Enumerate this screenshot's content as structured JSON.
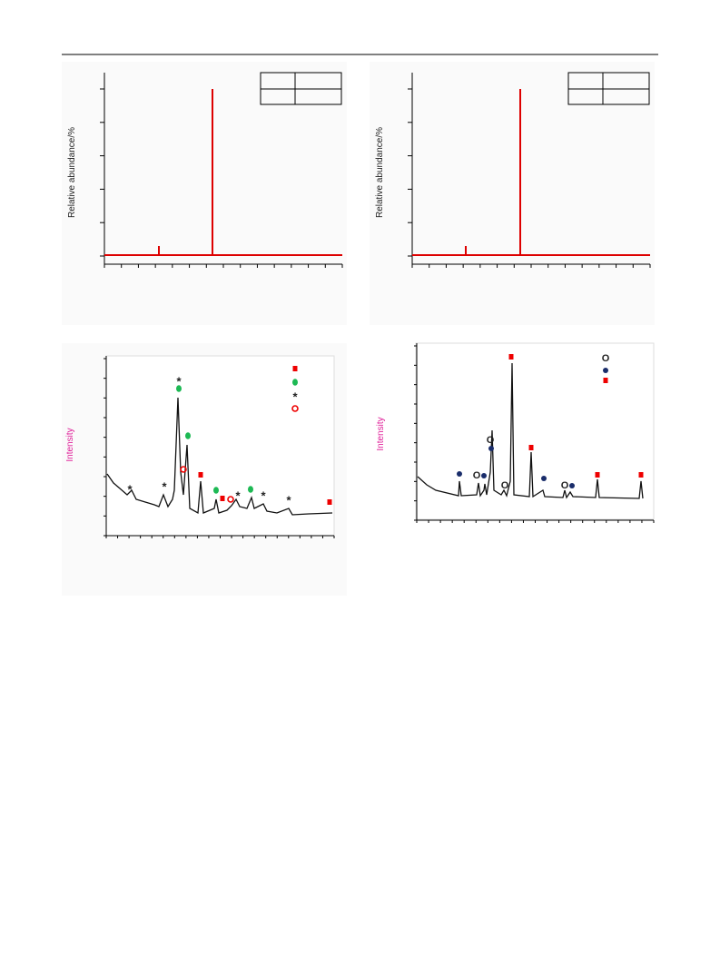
{
  "figures": [
    {
      "y_label": "Relative abundance/%"
    },
    {
      "y_label": "Relative abundance/%"
    },
    {
      "y_label": "Intensity"
    },
    {
      "y_label": "Intensity"
    }
  ],
  "markers": {
    "asterisk": "*",
    "open_circle": "O"
  }
}
